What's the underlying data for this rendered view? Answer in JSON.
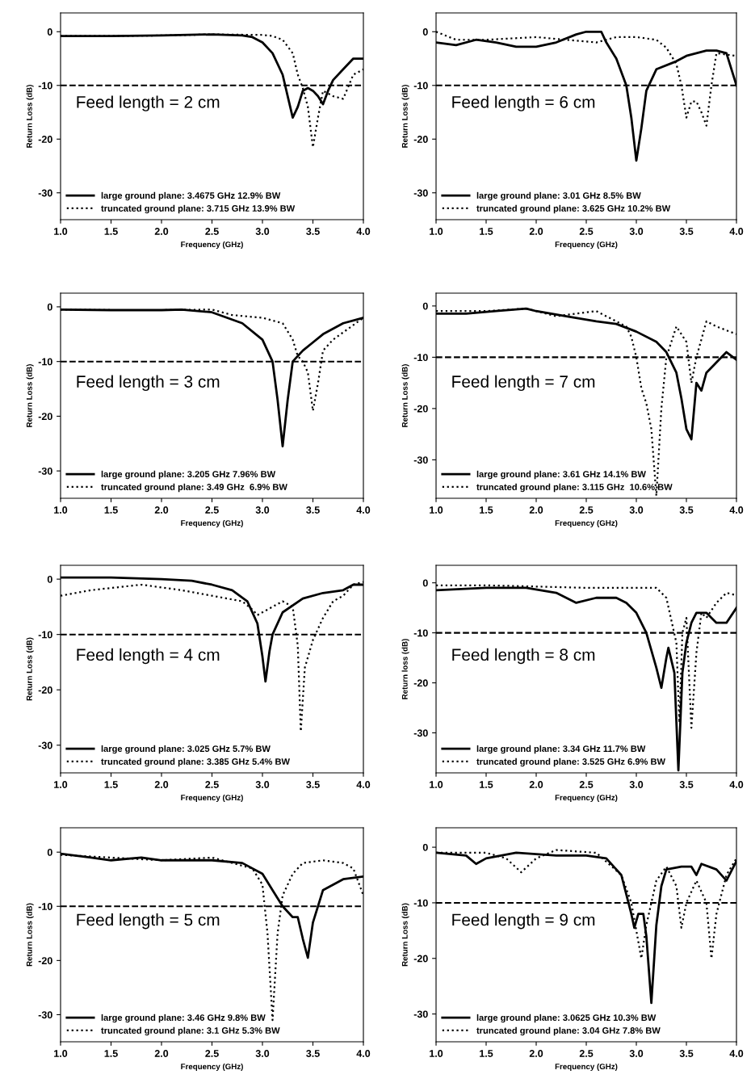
{
  "chart_data": [
    {
      "type": "line",
      "xlabel": "Frequency (GHz)",
      "ylabel": "Return Loss (dB)",
      "annotations": [
        "Feed length = 2 cm"
      ],
      "xlim": [
        1,
        4
      ],
      "ylim": [
        -35,
        3.5
      ],
      "xticks": [
        {
          "value": 1,
          "label": "1.0"
        },
        {
          "value": 1.5,
          "label": "1.5"
        },
        {
          "value": 2,
          "label": "2.0"
        },
        {
          "value": 2.5,
          "label": "2.5"
        },
        {
          "value": 3,
          "label": "3.0"
        },
        {
          "value": 3.5,
          "label": "3.5"
        },
        {
          "value": 4,
          "label": "4.0"
        }
      ],
      "yticks": [
        -30,
        -20,
        -10,
        0
      ],
      "legend": "bottom left",
      "grid": false,
      "ref_lines": [
        {
          "axis": "y",
          "value": -10,
          "color": "#000000",
          "line_style": "dashed"
        }
      ],
      "series": [
        {
          "name": "large ground plane: 3.4675 GHz 12.9% BW",
          "color": "#000000",
          "line_style": "solid",
          "x": [
            1.0,
            1.5,
            2.0,
            2.5,
            2.8,
            2.9,
            3.0,
            3.1,
            3.2,
            3.25,
            3.3,
            3.35,
            3.4,
            3.45,
            3.5,
            3.55,
            3.6,
            3.65,
            3.7,
            3.8,
            3.9,
            4.0
          ],
          "values": [
            -0.8,
            -0.8,
            -0.7,
            -0.5,
            -0.7,
            -1,
            -2,
            -4,
            -8,
            -12,
            -16,
            -14,
            -11,
            -10.5,
            -11,
            -12,
            -13.5,
            -11,
            -9,
            -7,
            -5,
            -5
          ]
        },
        {
          "name": "truncated ground plane: 3.715 GHz 13.9% BW",
          "color": "#000000",
          "line_style": "dotted",
          "x": [
            1.0,
            1.5,
            2.0,
            2.5,
            3.0,
            3.1,
            3.2,
            3.3,
            3.35,
            3.4,
            3.45,
            3.5,
            3.55,
            3.6,
            3.7,
            3.8,
            3.9,
            4.0
          ],
          "values": [
            -0.8,
            -0.8,
            -0.7,
            -0.5,
            -0.6,
            -0.8,
            -1.5,
            -4,
            -8,
            -10.5,
            -14,
            -21.5,
            -16,
            -11,
            -12,
            -12.5,
            -8,
            -7
          ]
        }
      ]
    },
    {
      "type": "line",
      "xlabel": "Frequency (GHz)",
      "ylabel": "Return Loss (dB)",
      "annotations": [
        "Feed length = 6 cm"
      ],
      "xlim": [
        1,
        4
      ],
      "ylim": [
        -35,
        3.5
      ],
      "xticks": [
        {
          "value": 1,
          "label": "1.0"
        },
        {
          "value": 1.5,
          "label": "1.5"
        },
        {
          "value": 2,
          "label": "2.0"
        },
        {
          "value": 2.5,
          "label": "2.5"
        },
        {
          "value": 3,
          "label": "3.0"
        },
        {
          "value": 3.5,
          "label": "3.5"
        },
        {
          "value": 4,
          "label": "4.0"
        }
      ],
      "yticks": [
        -30,
        -20,
        -10,
        0
      ],
      "legend": "bottom left",
      "grid": false,
      "ref_lines": [
        {
          "axis": "y",
          "value": -10,
          "color": "#000000",
          "line_style": "dashed"
        }
      ],
      "series": [
        {
          "name": "large ground plane: 3.01 GHz 8.5% BW",
          "color": "#000000",
          "line_style": "solid",
          "x": [
            1.0,
            1.2,
            1.4,
            1.6,
            1.8,
            2.0,
            2.2,
            2.4,
            2.5,
            2.65,
            2.7,
            2.8,
            2.9,
            2.95,
            3.0,
            3.05,
            3.1,
            3.2,
            3.4,
            3.5,
            3.6,
            3.7,
            3.8,
            3.9,
            4.0
          ],
          "values": [
            -2,
            -2.5,
            -1.5,
            -2,
            -2.8,
            -2.8,
            -2,
            -0.5,
            0,
            0,
            -2,
            -5,
            -10,
            -16,
            -24,
            -18,
            -11,
            -7,
            -5.5,
            -4.5,
            -4,
            -3.5,
            -3.5,
            -4,
            -10
          ]
        },
        {
          "name": "truncated ground plane: 3.625 GHz 10.2% BW",
          "color": "#000000",
          "line_style": "dotted",
          "x": [
            1.0,
            1.2,
            1.5,
            2.0,
            2.3,
            2.6,
            2.8,
            3.0,
            3.2,
            3.3,
            3.4,
            3.45,
            3.5,
            3.55,
            3.6,
            3.65,
            3.7,
            3.75,
            3.8,
            4.0
          ],
          "values": [
            0,
            -1.5,
            -1.5,
            -1,
            -1.5,
            -2,
            -1,
            -1,
            -1.5,
            -3,
            -6,
            -10,
            -16,
            -13,
            -13,
            -15,
            -17.5,
            -10,
            -4,
            -4.5
          ]
        }
      ]
    },
    {
      "type": "line",
      "xlabel": "Frequency (GHz)",
      "ylabel": "Return Loss (dB)",
      "annotations": [
        "Feed length = 3 cm"
      ],
      "xlim": [
        1,
        4
      ],
      "ylim": [
        -35,
        2.5
      ],
      "xticks": [
        {
          "value": 1,
          "label": "1.0"
        },
        {
          "value": 1.5,
          "label": "1.5"
        },
        {
          "value": 2,
          "label": "2.0"
        },
        {
          "value": 2.5,
          "label": "2.5"
        },
        {
          "value": 3,
          "label": "3.0"
        },
        {
          "value": 3.5,
          "label": "3.5"
        },
        {
          "value": 4,
          "label": "4.0"
        }
      ],
      "yticks": [
        -30,
        -20,
        -10,
        0
      ],
      "legend": "bottom left",
      "grid": false,
      "ref_lines": [
        {
          "axis": "y",
          "value": -10,
          "color": "#000000",
          "line_style": "dashed"
        }
      ],
      "series": [
        {
          "name": "large ground plane: 3.205 GHz 7.96% BW",
          "color": "#000000",
          "line_style": "solid",
          "x": [
            1.0,
            1.5,
            2.0,
            2.2,
            2.5,
            2.8,
            3.0,
            3.1,
            3.15,
            3.2,
            3.25,
            3.3,
            3.4,
            3.5,
            3.6,
            3.8,
            4.0
          ],
          "values": [
            -0.5,
            -0.6,
            -0.6,
            -0.5,
            -1,
            -3,
            -6,
            -10,
            -17,
            -25.5,
            -17,
            -10,
            -8,
            -6.5,
            -5,
            -3,
            -2
          ]
        },
        {
          "name": "truncated ground plane: 3.49 GHz  6.9% BW",
          "color": "#000000",
          "line_style": "dotted",
          "x": [
            1.0,
            1.5,
            2.0,
            2.5,
            2.7,
            3.0,
            3.2,
            3.3,
            3.35,
            3.4,
            3.45,
            3.5,
            3.55,
            3.6,
            3.7,
            4.0
          ],
          "values": [
            -0.5,
            -0.6,
            -0.6,
            -0.5,
            -1.5,
            -2,
            -3,
            -6,
            -9,
            -10,
            -12,
            -19,
            -14,
            -8,
            -6,
            -2
          ]
        }
      ]
    },
    {
      "type": "line",
      "xlabel": "Frequency (GHz)",
      "ylabel": "Return Loss (dB)",
      "annotations": [
        "Feed length = 7 cm"
      ],
      "xlim": [
        1,
        4
      ],
      "ylim": [
        -37.5,
        2.5
      ],
      "xticks": [
        {
          "value": 1,
          "label": "1.0"
        },
        {
          "value": 1.5,
          "label": "1.5"
        },
        {
          "value": 2,
          "label": "2.0"
        },
        {
          "value": 2.5,
          "label": "2.5"
        },
        {
          "value": 3,
          "label": "3.0"
        },
        {
          "value": 3.5,
          "label": "3.5"
        },
        {
          "value": 4,
          "label": "4.0"
        }
      ],
      "yticks": [
        -30,
        -20,
        -10,
        0
      ],
      "legend": "bottom left",
      "grid": false,
      "ref_lines": [
        {
          "axis": "y",
          "value": -10,
          "color": "#000000",
          "line_style": "dashed"
        }
      ],
      "series": [
        {
          "name": "large ground plane: 3.61 GHz 14.1% BW",
          "color": "#000000",
          "line_style": "solid",
          "x": [
            1.0,
            1.3,
            1.6,
            1.9,
            2.0,
            2.3,
            2.6,
            2.8,
            3.0,
            3.2,
            3.3,
            3.4,
            3.45,
            3.5,
            3.55,
            3.6,
            3.65,
            3.7,
            3.8,
            3.9,
            4.0
          ],
          "values": [
            -1.5,
            -1.5,
            -1,
            -0.5,
            -1,
            -2,
            -3,
            -3.5,
            -5,
            -7,
            -9,
            -13,
            -18,
            -24,
            -26,
            -15,
            -16.5,
            -13,
            -11,
            -9,
            -10.5
          ]
        },
        {
          "name": "truncated ground plane: 3.115 GHz  10.6% BW",
          "color": "#000000",
          "line_style": "dotted",
          "x": [
            1.0,
            1.5,
            1.9,
            2.2,
            2.6,
            2.9,
            2.95,
            3.0,
            3.05,
            3.1,
            3.15,
            3.2,
            3.25,
            3.3,
            3.4,
            3.5,
            3.55,
            3.6,
            3.7,
            3.8,
            4.0
          ],
          "values": [
            -1,
            -1,
            -0.5,
            -2,
            -1,
            -4,
            -6,
            -10,
            -16,
            -19,
            -24,
            -37,
            -20,
            -10,
            -4,
            -7,
            -15,
            -10,
            -3,
            -4,
            -5.5
          ]
        }
      ]
    },
    {
      "type": "line",
      "xlabel": "Frequency (GHz)",
      "ylabel": "Return Loss (dB)",
      "annotations": [
        "Feed length = 4 cm"
      ],
      "xlim": [
        1,
        4
      ],
      "ylim": [
        -35,
        2.5
      ],
      "xticks": [
        {
          "value": 1,
          "label": "1.0"
        },
        {
          "value": 1.5,
          "label": "1.5"
        },
        {
          "value": 2,
          "label": "2.0"
        },
        {
          "value": 2.5,
          "label": "2.5"
        },
        {
          "value": 3,
          "label": "3.0"
        },
        {
          "value": 3.5,
          "label": "3.5"
        },
        {
          "value": 4,
          "label": "4.0"
        }
      ],
      "yticks": [
        -30,
        -20,
        -10,
        0
      ],
      "legend": "bottom left",
      "grid": false,
      "ref_lines": [
        {
          "axis": "y",
          "value": -10,
          "color": "#000000",
          "line_style": "dashed"
        }
      ],
      "series": [
        {
          "name": "large ground plane: 3.025 GHz 5.7% BW",
          "color": "#000000",
          "line_style": "solid",
          "x": [
            1.0,
            1.5,
            2.0,
            2.3,
            2.5,
            2.7,
            2.85,
            2.95,
            3.0,
            3.03,
            3.07,
            3.1,
            3.2,
            3.4,
            3.6,
            3.8,
            3.9,
            4.0
          ],
          "values": [
            0.3,
            0.3,
            0,
            -0.3,
            -1,
            -2,
            -4,
            -8,
            -14,
            -18.5,
            -13,
            -10,
            -6,
            -3.5,
            -2.5,
            -2,
            -1,
            -1
          ]
        },
        {
          "name": "truncated ground plane: 3.385 GHz 5.4% BW",
          "color": "#000000",
          "line_style": "dotted",
          "x": [
            1.0,
            1.3,
            1.8,
            2.2,
            2.5,
            2.8,
            2.9,
            2.95,
            3.1,
            3.2,
            3.3,
            3.35,
            3.38,
            3.42,
            3.5,
            3.6,
            3.7,
            3.8,
            3.9,
            4.0
          ],
          "values": [
            -3,
            -2,
            -1,
            -2,
            -3,
            -4,
            -5.5,
            -6.5,
            -5,
            -4,
            -5,
            -12,
            -27.5,
            -16,
            -11,
            -7,
            -4,
            -3,
            -1,
            -0.5
          ]
        }
      ]
    },
    {
      "type": "line",
      "xlabel": "Frequency (GHz)",
      "ylabel": "Return loss (dB)",
      "annotations": [
        "Feed length = 8 cm"
      ],
      "xlim": [
        1,
        4
      ],
      "ylim": [
        -38,
        3.5
      ],
      "xticks": [
        {
          "value": 1,
          "label": "1.0"
        },
        {
          "value": 1.5,
          "label": "1.5"
        },
        {
          "value": 2,
          "label": "2.0"
        },
        {
          "value": 2.5,
          "label": "2.5"
        },
        {
          "value": 3,
          "label": "3.0"
        },
        {
          "value": 3.5,
          "label": "3.5"
        },
        {
          "value": 4,
          "label": "4.0"
        }
      ],
      "yticks": [
        -30,
        -20,
        -10,
        0
      ],
      "legend": "bottom left",
      "grid": false,
      "ref_lines": [
        {
          "axis": "y",
          "value": -10,
          "color": "#000000",
          "line_style": "dashed"
        }
      ],
      "series": [
        {
          "name": "large ground plane: 3.34 GHz 11.7% BW",
          "color": "#000000",
          "line_style": "solid",
          "x": [
            1.0,
            1.5,
            1.9,
            2.2,
            2.4,
            2.6,
            2.8,
            2.9,
            3.0,
            3.1,
            3.2,
            3.25,
            3.3,
            3.32,
            3.38,
            3.42,
            3.46,
            3.5,
            3.55,
            3.6,
            3.7,
            3.8,
            3.9,
            4.0
          ],
          "values": [
            -1.5,
            -1,
            -1,
            -2,
            -4,
            -3,
            -3,
            -4,
            -6,
            -10,
            -17,
            -21,
            -15,
            -13,
            -18,
            -37.5,
            -18,
            -12,
            -8,
            -6,
            -6,
            -8,
            -8,
            -5
          ]
        },
        {
          "name": "truncated ground plane: 3.525 GHz 6.9% BW",
          "color": "#000000",
          "line_style": "dotted",
          "x": [
            1.0,
            1.5,
            2.5,
            3.0,
            3.2,
            3.3,
            3.4,
            3.43,
            3.46,
            3.5,
            3.55,
            3.6,
            3.65,
            3.7,
            3.8,
            3.9,
            4.0
          ],
          "values": [
            -0.5,
            -0.5,
            -1,
            -1,
            -1,
            -3,
            -12,
            -28,
            -10,
            -7,
            -29,
            -14,
            -6,
            -7,
            -4,
            -2,
            -2.5
          ]
        }
      ]
    },
    {
      "type": "line",
      "xlabel": "Frequency (GHz)",
      "ylabel": "Return Loss (dB)",
      "annotations": [
        "Feed length = 5 cm"
      ],
      "xlim": [
        1,
        4
      ],
      "ylim": [
        -35,
        4.5
      ],
      "xticks": [
        {
          "value": 1,
          "label": "1.0"
        },
        {
          "value": 1.5,
          "label": "1.5"
        },
        {
          "value": 2,
          "label": "2.0"
        },
        {
          "value": 2.5,
          "label": "2.5"
        },
        {
          "value": 3,
          "label": "3.0"
        },
        {
          "value": 3.5,
          "label": "3.5"
        },
        {
          "value": 4,
          "label": "4.0"
        }
      ],
      "yticks": [
        -30,
        -20,
        -10,
        0
      ],
      "legend": "bottom left",
      "grid": false,
      "ref_lines": [
        {
          "axis": "y",
          "value": -10,
          "color": "#000000",
          "line_style": "dashed"
        }
      ],
      "series": [
        {
          "name": "large ground plane: 3.46 GHz 9.8% BW",
          "color": "#000000",
          "line_style": "solid",
          "x": [
            1.0,
            1.3,
            1.5,
            1.8,
            2.0,
            2.3,
            2.5,
            2.8,
            3.0,
            3.1,
            3.2,
            3.3,
            3.35,
            3.4,
            3.45,
            3.5,
            3.6,
            3.7,
            3.8,
            4.0
          ],
          "values": [
            -0.3,
            -1,
            -1.5,
            -1,
            -1.5,
            -1.5,
            -1.5,
            -2,
            -4,
            -7,
            -10,
            -12,
            -12,
            -16,
            -19.5,
            -13,
            -7,
            -6,
            -5,
            -4.5
          ]
        },
        {
          "name": "truncated ground plane: 3.1 GHz 5.3% BW",
          "color": "#000000",
          "line_style": "dotted",
          "x": [
            1.0,
            2.0,
            2.5,
            2.9,
            3.0,
            3.05,
            3.1,
            3.15,
            3.2,
            3.3,
            3.4,
            3.6,
            3.8,
            3.9,
            4.0
          ],
          "values": [
            -0.5,
            -1.5,
            -1,
            -3,
            -6,
            -15,
            -31,
            -15,
            -8,
            -4,
            -2,
            -1.5,
            -2,
            -3,
            -8
          ]
        }
      ]
    },
    {
      "type": "line",
      "xlabel": "Frequency (GHz)",
      "ylabel": "Return Loss (dB)",
      "annotations": [
        "Feed length = 9 cm"
      ],
      "xlim": [
        1,
        4
      ],
      "ylim": [
        -35,
        3.5
      ],
      "xticks": [
        {
          "value": 1,
          "label": "1.0"
        },
        {
          "value": 1.5,
          "label": "1.5"
        },
        {
          "value": 2,
          "label": "2.0"
        },
        {
          "value": 2.5,
          "label": "2.5"
        },
        {
          "value": 3,
          "label": "3.0"
        },
        {
          "value": 3.5,
          "label": "3.5"
        },
        {
          "value": 4,
          "label": "4.0"
        }
      ],
      "yticks": [
        -30,
        -20,
        -10,
        0
      ],
      "legend": "bottom left",
      "grid": false,
      "ref_lines": [
        {
          "axis": "y",
          "value": -10,
          "color": "#000000",
          "line_style": "dashed"
        }
      ],
      "series": [
        {
          "name": "large ground plane: 3.0625 GHz 10.3% BW",
          "color": "#000000",
          "line_style": "solid",
          "x": [
            1.0,
            1.3,
            1.4,
            1.5,
            1.8,
            2.2,
            2.5,
            2.7,
            2.85,
            2.95,
            2.98,
            3.02,
            3.07,
            3.1,
            3.15,
            3.2,
            3.25,
            3.3,
            3.45,
            3.55,
            3.6,
            3.65,
            3.8,
            3.9,
            4.0
          ],
          "values": [
            -1,
            -1.5,
            -3,
            -2,
            -1,
            -1.5,
            -1.5,
            -2,
            -5,
            -12,
            -14.5,
            -12,
            -12,
            -16,
            -28,
            -14,
            -7,
            -4,
            -3.5,
            -3.5,
            -5,
            -3,
            -4,
            -6,
            -2.5
          ]
        },
        {
          "name": "truncated ground plane: 3.04 GHz 7.8% BW",
          "color": "#000000",
          "line_style": "dotted",
          "x": [
            1.0,
            1.5,
            1.7,
            1.85,
            2.0,
            2.2,
            2.6,
            2.85,
            2.95,
            3.0,
            3.05,
            3.1,
            3.2,
            3.3,
            3.4,
            3.45,
            3.5,
            3.6,
            3.7,
            3.75,
            3.8,
            3.9,
            4.0
          ],
          "values": [
            -1,
            -1,
            -2,
            -4.5,
            -2,
            -0.5,
            -1,
            -5,
            -10,
            -15,
            -20,
            -14,
            -6,
            -3.5,
            -7,
            -14.5,
            -10,
            -6,
            -10,
            -20,
            -12,
            -5,
            -2
          ]
        }
      ]
    }
  ]
}
